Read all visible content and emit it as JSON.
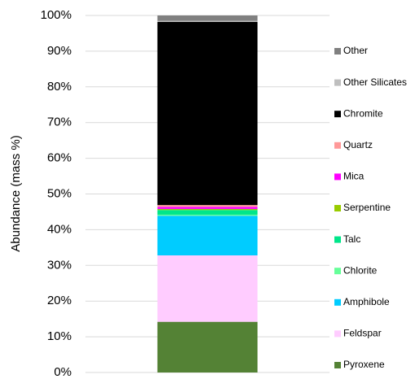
{
  "chart_data": {
    "type": "stacked_bar",
    "y_label": "Abundance (mass %)",
    "categories": [
      null
    ],
    "series": [
      {
        "name": "Pyroxene",
        "color": "#548235",
        "values": [
          14.2
        ]
      },
      {
        "name": "Feldspar",
        "color": "#ffccff",
        "values": [
          18.6
        ]
      },
      {
        "name": "Amphibole",
        "color": "#00ccff",
        "values": [
          11.1
        ]
      },
      {
        "name": "Chlorite",
        "color": "#66ff99",
        "values": [
          0.3
        ]
      },
      {
        "name": "Talc",
        "color": "#00e68a",
        "values": [
          1.3
        ]
      },
      {
        "name": "Serpentine",
        "color": "#99cc00",
        "values": [
          0.3
        ]
      },
      {
        "name": "Mica",
        "color": "#ff00ff",
        "values": [
          0.6
        ]
      },
      {
        "name": "Quartz",
        "color": "#ff9999",
        "values": [
          0.5
        ]
      },
      {
        "name": "Chromite",
        "color": "#000000",
        "values": [
          51.3
        ]
      },
      {
        "name": "Other Silicates",
        "color": "#bfbfbf",
        "values": [
          0.3
        ]
      },
      {
        "name": "Other",
        "color": "#808080",
        "values": [
          1.5
        ]
      }
    ],
    "ylim": [
      0,
      100
    ],
    "yticks": [
      {
        "value": 0,
        "label": "0%"
      },
      {
        "value": 10,
        "label": "10%"
      },
      {
        "value": 20,
        "label": "20%"
      },
      {
        "value": 30,
        "label": "30%"
      },
      {
        "value": 40,
        "label": "40%"
      },
      {
        "value": 50,
        "label": "50%"
      },
      {
        "value": 60,
        "label": "60%"
      },
      {
        "value": 70,
        "label": "70%"
      },
      {
        "value": 80,
        "label": "80%"
      },
      {
        "value": 90,
        "label": "90%"
      },
      {
        "value": 100,
        "label": "100%"
      }
    ],
    "grid": true,
    "legend": "right"
  }
}
